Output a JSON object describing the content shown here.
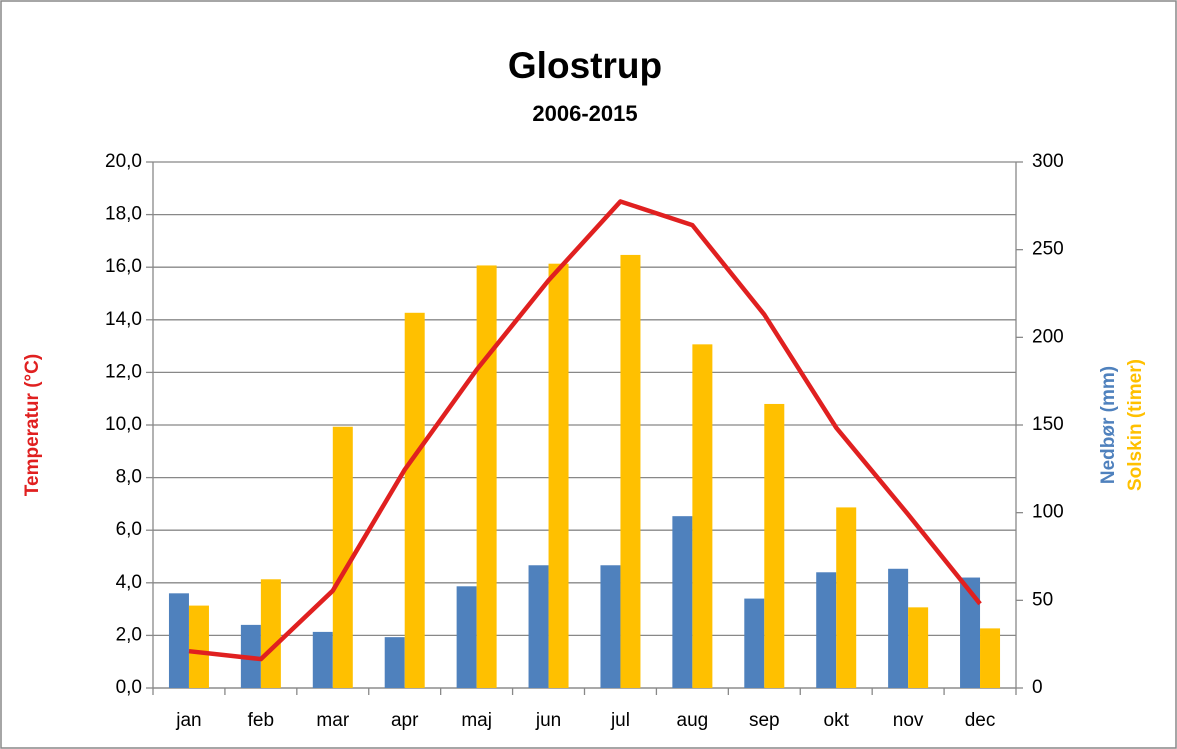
{
  "chart_data": {
    "type": "bar_line",
    "title": "Glostrup",
    "subtitle": "2006-2015",
    "categories": [
      "jan",
      "feb",
      "mar",
      "apr",
      "maj",
      "jun",
      "jul",
      "aug",
      "sep",
      "okt",
      "nov",
      "dec"
    ],
    "series": [
      {
        "name": "Temperatur (°C)",
        "type": "line",
        "axis": "y",
        "color": "#e02020",
        "values": [
          1.4,
          1.1,
          3.7,
          8.3,
          12.1,
          15.5,
          18.5,
          17.6,
          14.2,
          9.9,
          6.6,
          3.2
        ]
      },
      {
        "name": "Nedbør (mm)",
        "type": "bar",
        "axis": "y2",
        "color": "#4f81bd",
        "values": [
          54,
          36,
          32,
          29,
          58,
          70,
          70,
          98,
          51,
          66,
          68,
          63
        ]
      },
      {
        "name": "Solskin (timer)",
        "type": "bar",
        "axis": "y2",
        "color": "#ffc000",
        "values": [
          47,
          62,
          149,
          214,
          241,
          242,
          247,
          196,
          162,
          103,
          46,
          34
        ]
      }
    ],
    "ylim": [
      0,
      20
    ],
    "yticks": [
      {
        "value": 0,
        "label": "0,0"
      },
      {
        "value": 2,
        "label": "2,0"
      },
      {
        "value": 4,
        "label": "4,0"
      },
      {
        "value": 6,
        "label": "6,0"
      },
      {
        "value": 8,
        "label": "8,0"
      },
      {
        "value": 10,
        "label": "10,0"
      },
      {
        "value": 12,
        "label": "12,0"
      },
      {
        "value": 14,
        "label": "14,0"
      },
      {
        "value": 16,
        "label": "16,0"
      },
      {
        "value": 18,
        "label": "18,0"
      },
      {
        "value": 20,
        "label": "20,0"
      }
    ],
    "y2lim": [
      0,
      300
    ],
    "y2ticks": [
      0,
      50,
      100,
      150,
      200,
      250,
      300
    ],
    "grid": true
  }
}
